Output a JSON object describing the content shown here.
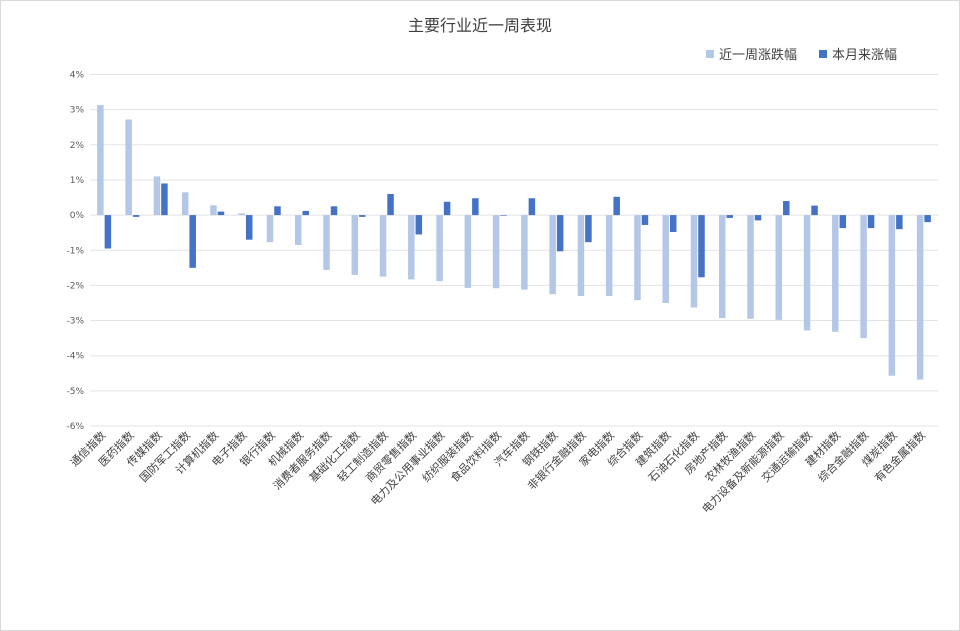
{
  "chart_data": {
    "type": "bar",
    "title": "主要行业近一周表现",
    "legend_position": "top-right",
    "grid": true,
    "ylim": [
      -6,
      4
    ],
    "yticks": [
      "4%",
      "3%",
      "2%",
      "1%",
      "0%",
      "-1%",
      "-2%",
      "-3%",
      "-4%",
      "-5%",
      "-6%"
    ],
    "categories": [
      "通信指数",
      "医药指数",
      "传媒指数",
      "国防军工指数",
      "计算机指数",
      "电子指数",
      "银行指数",
      "机械指数",
      "消费者服务指数",
      "基础化工指数",
      "轻工制造指数",
      "商贸零售指数",
      "电力及公用事业指数",
      "纺织服装指数",
      "食品饮料指数",
      "汽车指数",
      "钢铁指数",
      "非银行金融指数",
      "家电指数",
      "综合指数",
      "建筑指数",
      "石油石化指数",
      "房地产指数",
      "农林牧渔指数",
      "电力设备及新能源指数",
      "交通运输指数",
      "建材指数",
      "综合金融指数",
      "煤炭指数",
      "有色金属指数"
    ],
    "series": [
      {
        "name": "近一周涨跌幅",
        "color": "#b4c7e7",
        "values": [
          3.13,
          2.72,
          1.1,
          0.65,
          0.28,
          0.05,
          -0.77,
          -0.85,
          -1.56,
          -1.7,
          -1.75,
          -1.83,
          -1.88,
          -2.07,
          -2.08,
          -2.12,
          -2.25,
          -2.3,
          -2.3,
          -2.42,
          -2.5,
          -2.63,
          -2.93,
          -2.95,
          -2.98,
          -3.28,
          -3.32,
          -3.5,
          -4.57,
          -4.68
        ]
      },
      {
        "name": "本月来涨幅",
        "color": "#4472c4",
        "values": [
          -0.95,
          -0.05,
          0.9,
          -1.5,
          0.1,
          -0.7,
          0.25,
          0.12,
          0.25,
          -0.05,
          0.6,
          -0.55,
          0.38,
          0.48,
          0.0,
          0.48,
          -1.03,
          -0.77,
          0.52,
          -0.28,
          -0.48,
          -1.77,
          -0.08,
          -0.15,
          0.4,
          0.27,
          -0.37,
          -0.37,
          -0.4,
          -0.2
        ]
      }
    ]
  }
}
